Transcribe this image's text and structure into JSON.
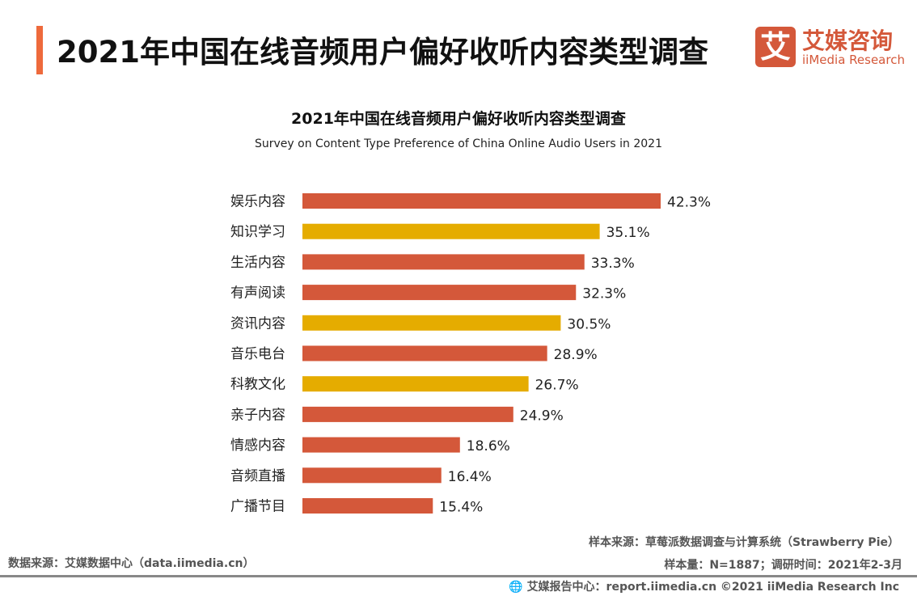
{
  "header": {
    "title": "2021年中国在线音频用户偏好收听内容类型调查",
    "accent_color": "#EE6A3C"
  },
  "logo": {
    "mark": "艾",
    "name_cn": "艾媒咨询",
    "name_en": "iiMedia Research",
    "color": "#D4583A"
  },
  "chart_data": {
    "type": "bar",
    "orientation": "horizontal",
    "title": "2021年中国在线音频用户偏好收听内容类型调查",
    "subtitle": "Survey on Content Type Preference of China Online Audio Users in 2021",
    "categories": [
      "娱乐内容",
      "知识学习",
      "生活内容",
      "有声阅读",
      "资讯内容",
      "音乐电台",
      "科教文化",
      "亲子内容",
      "情感内容",
      "音频直播",
      "广播节目"
    ],
    "values": [
      42.3,
      35.1,
      33.3,
      32.3,
      30.5,
      28.9,
      26.7,
      24.9,
      18.6,
      16.4,
      15.4
    ],
    "labels": [
      "42.3%",
      "35.1%",
      "33.3%",
      "32.3%",
      "30.5%",
      "28.9%",
      "26.7%",
      "24.9%",
      "18.6%",
      "16.4%",
      "15.4%"
    ],
    "bar_colors": [
      "#D4583A",
      "#E5AC00",
      "#D4583A",
      "#D4583A",
      "#E5AC00",
      "#D4583A",
      "#E5AC00",
      "#D4583A",
      "#D4583A",
      "#D4583A",
      "#D4583A"
    ],
    "unit": "%",
    "xlim": [
      0,
      42.3
    ],
    "grid": false,
    "legend": "none"
  },
  "footer": {
    "sample_source": "样本来源：草莓派数据调查与计算系统（Strawberry Pie）",
    "data_source": "数据来源：艾媒数据中心（data.iimedia.cn）",
    "sample_info": "样本量：N=1887；调研时间：2021年2-3月",
    "report": "艾媒报告中心：report.iimedia.cn ©2021  iiMedia Research Inc",
    "globe_icon": "globe-icon"
  }
}
